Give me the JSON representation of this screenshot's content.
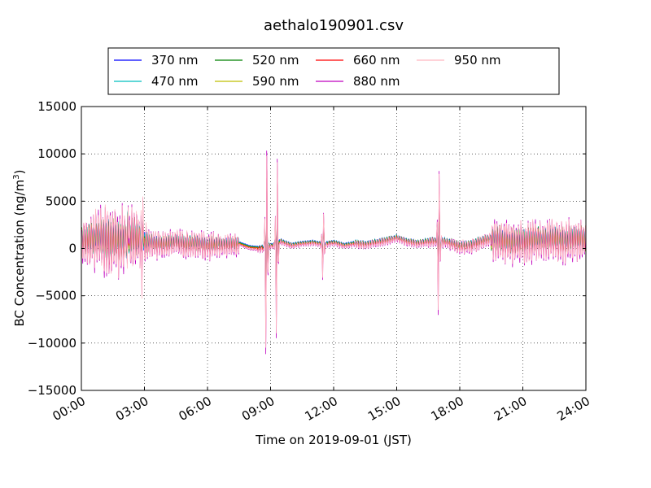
{
  "chart_data": {
    "type": "line",
    "title": "aethalo190901.csv",
    "xlabel": "Time on 2019-09-01 (JST)",
    "ylabel_main": "BC Concentration (ng/m",
    "ylabel_sup": "3",
    "ylabel_tail": ")",
    "xlim_hours": [
      0,
      24
    ],
    "ylim": [
      -15000,
      15000
    ],
    "grid": true,
    "legend_position": "top, outside plot",
    "x_ticks": [
      {
        "hour": 0,
        "label": "00:00"
      },
      {
        "hour": 3,
        "label": "03:00"
      },
      {
        "hour": 6,
        "label": "06:00"
      },
      {
        "hour": 9,
        "label": "09:00"
      },
      {
        "hour": 12,
        "label": "12:00"
      },
      {
        "hour": 15,
        "label": "15:00"
      },
      {
        "hour": 18,
        "label": "18:00"
      },
      {
        "hour": 21,
        "label": "21:00"
      },
      {
        "hour": 24,
        "label": "24:00"
      }
    ],
    "y_ticks": [
      {
        "value": 15000,
        "label": "15000"
      },
      {
        "value": 10000,
        "label": "10000"
      },
      {
        "value": 5000,
        "label": "5000"
      },
      {
        "value": 0,
        "label": "0"
      },
      {
        "value": -5000,
        "label": "−5000"
      },
      {
        "value": -10000,
        "label": "−10000"
      },
      {
        "value": -15000,
        "label": "−15000"
      }
    ],
    "series": [
      {
        "name": "370 nm",
        "color": "#0000ff",
        "scale": 0.45,
        "hours": [
          0,
          0.5,
          1,
          1.5,
          2,
          2.5,
          3,
          3.5,
          4,
          4.5,
          5,
          5.5,
          6,
          6.5,
          7,
          7.5,
          8,
          8.5,
          9,
          9.5,
          10,
          10.5,
          11,
          11.5,
          12,
          12.5,
          13,
          13.5,
          14,
          14.5,
          15,
          15.5,
          16,
          16.5,
          17,
          17.5,
          18,
          18.5,
          19,
          19.5,
          20,
          20.5,
          21,
          21.5,
          22,
          22.5,
          23,
          23.5,
          24
        ],
        "values": [
          1000,
          1100,
          1200,
          900,
          1100,
          1300,
          800,
          700,
          600,
          900,
          600,
          700,
          500,
          600,
          600,
          700,
          300,
          200,
          400,
          900,
          500,
          700,
          800,
          600,
          800,
          500,
          700,
          600,
          800,
          1000,
          1300,
          900,
          700,
          900,
          1000,
          800,
          400,
          500,
          900,
          1200,
          1000,
          800,
          900,
          1100,
          1000,
          1200,
          1000,
          1300,
          1100
        ]
      },
      {
        "name": "470 nm",
        "color": "#00bfbf",
        "scale": 0.55,
        "hours": [
          0,
          0.5,
          1,
          1.5,
          2,
          2.5,
          3,
          3.5,
          4,
          4.5,
          5,
          5.5,
          6,
          6.5,
          7,
          7.5,
          8,
          8.5,
          9,
          9.5,
          10,
          10.5,
          11,
          11.5,
          12,
          12.5,
          13,
          13.5,
          14,
          14.5,
          15,
          15.5,
          16,
          16.5,
          17,
          17.5,
          18,
          18.5,
          19,
          19.5,
          20,
          20.5,
          21,
          21.5,
          22,
          22.5,
          23,
          23.5,
          24
        ],
        "values": [
          950,
          1050,
          1150,
          850,
          1050,
          1250,
          750,
          650,
          550,
          850,
          550,
          650,
          450,
          550,
          550,
          650,
          250,
          150,
          350,
          850,
          450,
          650,
          750,
          550,
          750,
          450,
          650,
          550,
          750,
          950,
          1250,
          850,
          650,
          850,
          950,
          750,
          350,
          450,
          850,
          1150,
          950,
          750,
          850,
          1050,
          950,
          1150,
          950,
          1250,
          1050
        ]
      },
      {
        "name": "520 nm",
        "color": "#008000",
        "scale": 0.6,
        "hours": [
          0,
          0.5,
          1,
          1.5,
          2,
          2.5,
          3,
          3.5,
          4,
          4.5,
          5,
          5.5,
          6,
          6.5,
          7,
          7.5,
          8,
          8.5,
          9,
          9.5,
          10,
          10.5,
          11,
          11.5,
          12,
          12.5,
          13,
          13.5,
          14,
          14.5,
          15,
          15.5,
          16,
          16.5,
          17,
          17.5,
          18,
          18.5,
          19,
          19.5,
          20,
          20.5,
          21,
          21.5,
          22,
          22.5,
          23,
          23.5,
          24
        ],
        "values": [
          900,
          1000,
          1100,
          800,
          1000,
          1200,
          700,
          600,
          500,
          800,
          500,
          600,
          400,
          500,
          500,
          600,
          200,
          100,
          300,
          800,
          400,
          600,
          700,
          500,
          700,
          400,
          600,
          500,
          700,
          900,
          1200,
          800,
          600,
          800,
          900,
          700,
          300,
          400,
          800,
          1100,
          900,
          700,
          800,
          1000,
          900,
          1100,
          900,
          1200,
          1000
        ]
      },
      {
        "name": "590 nm",
        "color": "#bfbf00",
        "scale": 0.65,
        "hours": [
          0,
          0.5,
          1,
          1.5,
          2,
          2.5,
          3,
          3.5,
          4,
          4.5,
          5,
          5.5,
          6,
          6.5,
          7,
          7.5,
          8,
          8.5,
          9,
          9.5,
          10,
          10.5,
          11,
          11.5,
          12,
          12.5,
          13,
          13.5,
          14,
          14.5,
          15,
          15.5,
          16,
          16.5,
          17,
          17.5,
          18,
          18.5,
          19,
          19.5,
          20,
          20.5,
          21,
          21.5,
          22,
          22.5,
          23,
          23.5,
          24
        ],
        "values": [
          850,
          950,
          1050,
          750,
          950,
          1150,
          650,
          550,
          450,
          750,
          450,
          550,
          350,
          450,
          450,
          550,
          150,
          50,
          250,
          750,
          350,
          550,
          650,
          450,
          650,
          350,
          550,
          450,
          650,
          850,
          1150,
          750,
          550,
          750,
          850,
          650,
          250,
          350,
          750,
          1050,
          850,
          650,
          750,
          950,
          850,
          1050,
          850,
          1150,
          950
        ]
      },
      {
        "name": "660 nm",
        "color": "#ff0000",
        "scale": 0.7,
        "hours": [
          0,
          0.5,
          1,
          1.5,
          2,
          2.5,
          3,
          3.5,
          4,
          4.5,
          5,
          5.5,
          6,
          6.5,
          7,
          7.5,
          8,
          8.5,
          9,
          9.5,
          10,
          10.5,
          11,
          11.5,
          12,
          12.5,
          13,
          13.5,
          14,
          14.5,
          15,
          15.5,
          16,
          16.5,
          17,
          17.5,
          18,
          18.5,
          19,
          19.5,
          20,
          20.5,
          21,
          21.5,
          22,
          22.5,
          23,
          23.5,
          24
        ],
        "values": [
          800,
          900,
          1000,
          700,
          900,
          1100,
          600,
          500,
          400,
          700,
          400,
          500,
          300,
          400,
          400,
          500,
          100,
          0,
          200,
          700,
          300,
          500,
          600,
          400,
          600,
          300,
          500,
          400,
          600,
          800,
          1100,
          700,
          500,
          700,
          800,
          600,
          200,
          300,
          700,
          1000,
          800,
          600,
          700,
          900,
          800,
          1000,
          800,
          1100,
          900
        ]
      },
      {
        "name": "880 nm",
        "color": "#bf00bf",
        "scale": 1.0,
        "hours": [
          0,
          0.5,
          1,
          1.5,
          2,
          2.5,
          3,
          3.5,
          4,
          4.5,
          5,
          5.5,
          6,
          6.5,
          7,
          7.5,
          8,
          8.5,
          9,
          9.5,
          10,
          10.5,
          11,
          11.5,
          12,
          12.5,
          13,
          13.5,
          14,
          14.5,
          15,
          15.5,
          16,
          16.5,
          17,
          17.5,
          18,
          18.5,
          19,
          19.5,
          20,
          20.5,
          21,
          21.5,
          22,
          22.5,
          23,
          23.5,
          24
        ],
        "values": [
          700,
          800,
          900,
          600,
          800,
          1000,
          500,
          400,
          300,
          600,
          300,
          400,
          200,
          300,
          300,
          400,
          -100,
          -200,
          100,
          600,
          200,
          400,
          500,
          300,
          500,
          200,
          400,
          300,
          500,
          700,
          1000,
          600,
          400,
          600,
          700,
          500,
          100,
          200,
          600,
          900,
          700,
          500,
          600,
          800,
          700,
          900,
          700,
          1000,
          800
        ]
      },
      {
        "name": "950 nm",
        "color": "#ffb6c1",
        "scale": 0.95,
        "hours": [
          0,
          0.5,
          1,
          1.5,
          2,
          2.5,
          3,
          3.5,
          4,
          4.5,
          5,
          5.5,
          6,
          6.5,
          7,
          7.5,
          8,
          8.5,
          9,
          9.5,
          10,
          10.5,
          11,
          11.5,
          12,
          12.5,
          13,
          13.5,
          14,
          14.5,
          15,
          15.5,
          16,
          16.5,
          17,
          17.5,
          18,
          18.5,
          19,
          19.5,
          20,
          20.5,
          21,
          21.5,
          22,
          22.5,
          23,
          23.5,
          24
        ],
        "values": [
          750,
          850,
          950,
          650,
          850,
          1050,
          550,
          450,
          350,
          650,
          350,
          450,
          250,
          350,
          350,
          450,
          -50,
          -150,
          150,
          650,
          250,
          450,
          550,
          350,
          550,
          250,
          450,
          350,
          550,
          750,
          1050,
          650,
          450,
          650,
          750,
          550,
          150,
          250,
          650,
          950,
          750,
          550,
          650,
          850,
          750,
          950,
          750,
          1050,
          850
        ]
      }
    ],
    "events": [
      {
        "hour": 2.2,
        "amplitude": 7000
      },
      {
        "hour": 2.9,
        "amplitude": 7500
      },
      {
        "hour": 8.8,
        "amplitude": 14000
      },
      {
        "hour": 9.3,
        "amplitude": 12000
      },
      {
        "hour": 11.5,
        "amplitude": 4000
      },
      {
        "hour": 17.0,
        "amplitude": 8500
      }
    ]
  }
}
